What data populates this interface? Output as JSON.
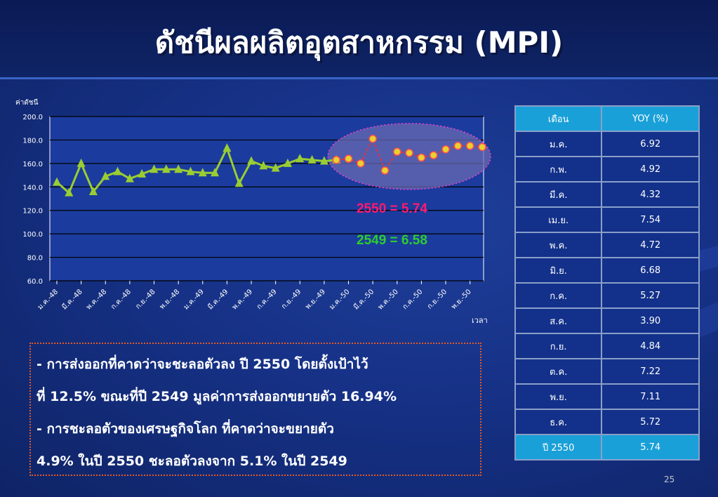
{
  "title": "ดัชนีผลผลิตอุตสาหกรรม (MPI)",
  "chart_data": {
    "type": "line",
    "ylabel": "ค่าดัชนี",
    "xlabel": "เวลา",
    "ylim": [
      60,
      200
    ],
    "yticks": [
      "60.0",
      "80.0",
      "100.0",
      "120.0",
      "140.0",
      "160.0",
      "180.0",
      "200.0"
    ],
    "grid": true,
    "x_tick_labels": [
      "ม.ค.-48",
      "มี.ค.-48",
      "พ.ค.-48",
      "ก.ค.-48",
      "ก.ย.-48",
      "พ.ย.-48",
      "ม.ค.-49",
      "มี.ค.-49",
      "พ.ค.-49",
      "ก.ค.-49",
      "ก.ย.-49",
      "พ.ย.-49",
      "ม.ค.-50",
      "มี.ค.-50",
      "พ.ค.-50",
      "ก.ค.-50",
      "ก.ย.-50",
      "พ.ย.-50"
    ],
    "series": [
      {
        "values": [
          144,
          135,
          160,
          136,
          149,
          153,
          147,
          151,
          155,
          155,
          155,
          153,
          152,
          152,
          173,
          143,
          162,
          158,
          156,
          160,
          164,
          163,
          162,
          163
        ],
        "color": "#9acd32",
        "marker": "triangle"
      },
      {
        "values": [
          163,
          164,
          160,
          181,
          154,
          170,
          169,
          165,
          167,
          172,
          175,
          175,
          174
        ],
        "color": "#ff2a2a",
        "marker": "circle",
        "marker_color": "#e8d030"
      }
    ],
    "annotations": [
      {
        "text": "2550 = 5.74",
        "color": "#ff1a6e"
      },
      {
        "text": "2549 = 6.58",
        "color": "#2ecc2e"
      }
    ]
  },
  "notes": [
    "- การส่งออกที่คาดว่าจะชะลอตัวลง ปี 2550 โดยตั้งเป้าไว้",
    "ที่ 12.5% ขณะที่ปี 2549 มูลค่าการส่งออกขยายตัว 16.94%",
    "- การชะลอตัวของเศรษฐกิจโลก ที่คาดว่าจะขยายตัว",
    "4.9% ในปี 2550 ชะลอตัวลงจาก 5.1% ในปี 2549"
  ],
  "table": {
    "headers": [
      "เดือน",
      "YOY (%)"
    ],
    "rows": [
      [
        "ม.ค.",
        "6.92"
      ],
      [
        "ก.พ.",
        "4.92"
      ],
      [
        "มี.ค.",
        "4.32"
      ],
      [
        "เม.ย.",
        "7.54"
      ],
      [
        "พ.ค.",
        "4.72"
      ],
      [
        "มิ.ย.",
        "6.68"
      ],
      [
        "ก.ค.",
        "5.27"
      ],
      [
        "ส.ค.",
        "3.90"
      ],
      [
        "ก.ย.",
        "4.84"
      ],
      [
        "ต.ค.",
        "7.22"
      ],
      [
        "พ.ย.",
        "7.11"
      ],
      [
        "ธ.ค.",
        "5.72"
      ]
    ],
    "total": [
      "ปี 2550",
      "5.74"
    ]
  },
  "page_number": "25"
}
